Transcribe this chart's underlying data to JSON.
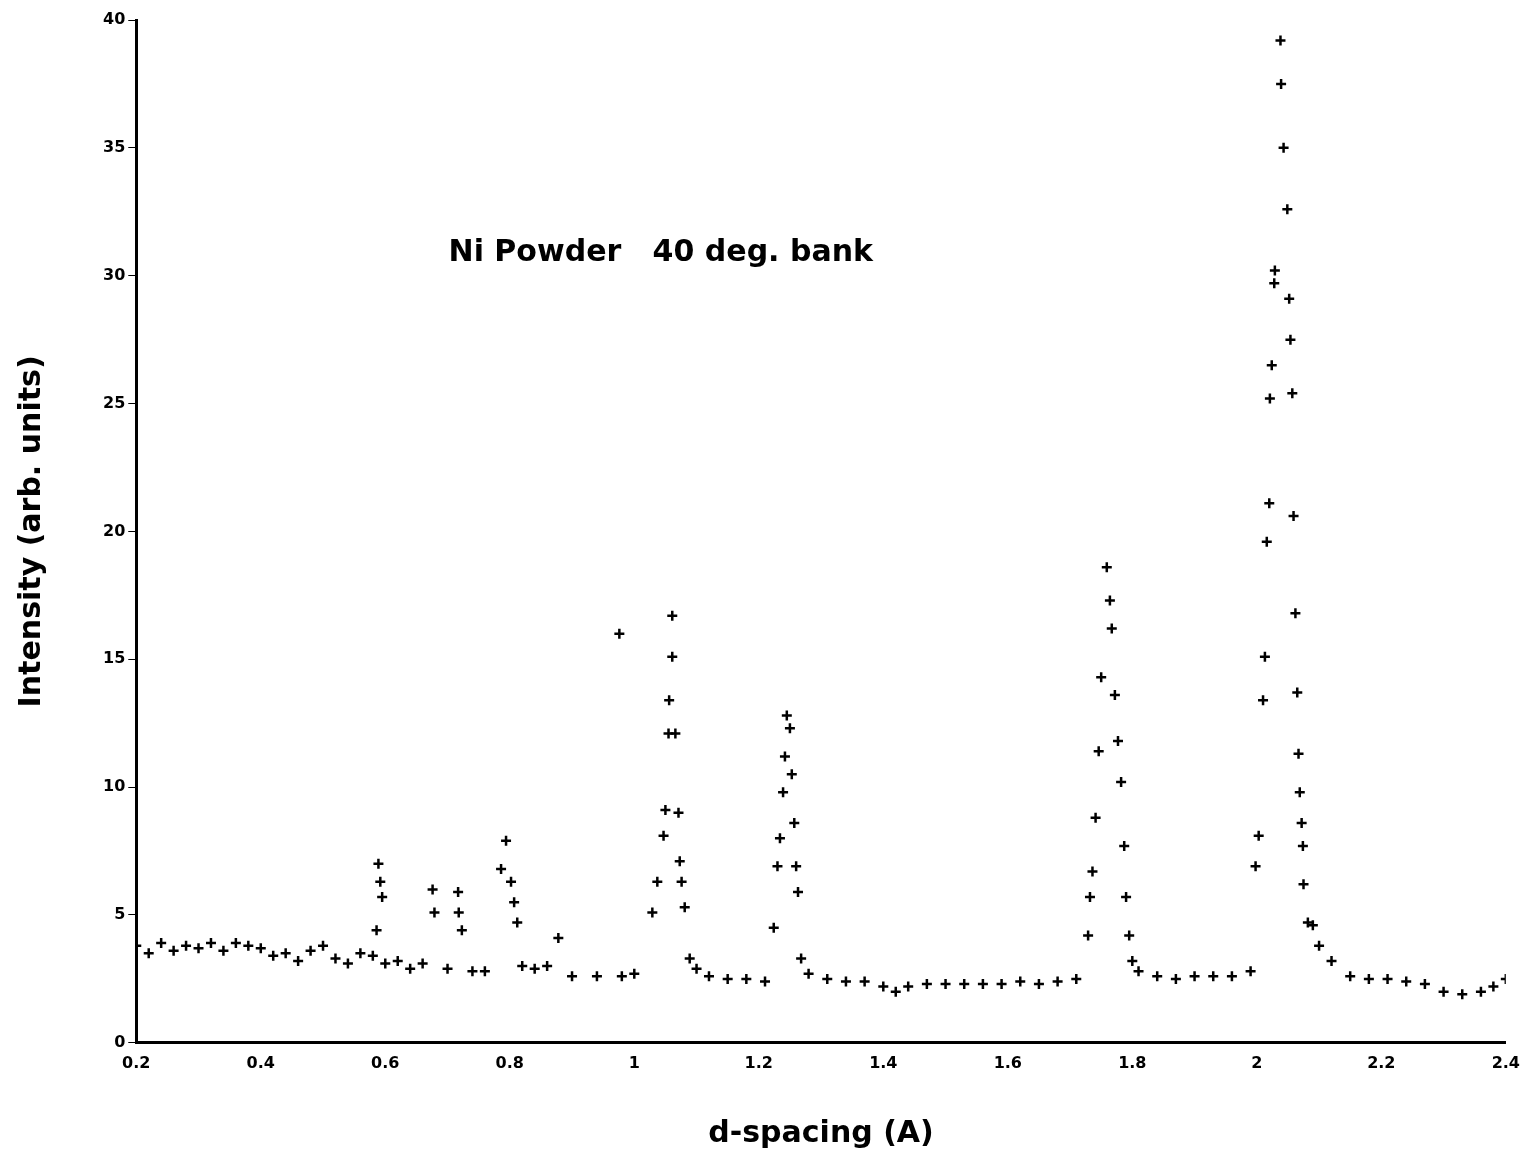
{
  "chart_data": {
    "type": "scatter",
    "title": "Ni Powder   40 deg. bank",
    "xlabel": "d-spacing (A)",
    "ylabel": "Intensity (arb. units)",
    "xlim": [
      0.2,
      2.4
    ],
    "xticks": [
      0.2,
      0.4,
      0.6,
      0.8,
      1,
      1.2,
      1.4,
      1.6,
      1.8,
      2,
      2.2,
      2.4
    ],
    "ylim": [
      0,
      40
    ],
    "yticks": [
      0,
      5,
      10,
      15,
      20,
      25,
      30,
      35,
      40
    ],
    "grid": false,
    "legend": false,
    "marker": "cross",
    "series": [
      {
        "color": "#000000",
        "x": [
          0.2,
          0.22,
          0.24,
          0.26,
          0.28,
          0.3,
          0.32,
          0.34,
          0.36,
          0.38,
          0.4,
          0.42,
          0.44,
          0.46,
          0.48,
          0.5,
          0.52,
          0.54,
          0.56,
          0.58,
          0.586,
          0.589,
          0.592,
          0.595,
          0.6,
          0.62,
          0.64,
          0.66,
          0.676,
          0.679,
          0.7,
          0.717,
          0.718,
          0.723,
          0.74,
          0.76,
          0.786,
          0.794,
          0.802,
          0.807,
          0.812,
          0.82,
          0.84,
          0.86,
          0.878,
          0.9,
          0.94,
          0.976,
          0.98,
          1.0,
          1.029,
          1.037,
          1.047,
          1.05,
          1.055,
          1.056,
          1.061,
          1.061,
          1.066,
          1.071,
          1.073,
          1.076,
          1.081,
          1.089,
          1.1,
          1.12,
          1.15,
          1.18,
          1.21,
          1.224,
          1.23,
          1.234,
          1.239,
          1.242,
          1.245,
          1.25,
          1.253,
          1.257,
          1.26,
          1.263,
          1.268,
          1.28,
          1.31,
          1.34,
          1.37,
          1.4,
          1.42,
          1.44,
          1.47,
          1.5,
          1.53,
          1.56,
          1.59,
          1.62,
          1.65,
          1.68,
          1.71,
          1.729,
          1.732,
          1.736,
          1.741,
          1.746,
          1.75,
          1.759,
          1.764,
          1.767,
          1.772,
          1.777,
          1.782,
          1.787,
          1.79,
          1.795,
          1.8,
          1.81,
          1.84,
          1.87,
          1.9,
          1.93,
          1.96,
          1.99,
          1.998,
          2.003,
          2.01,
          2.013,
          2.016,
          2.02,
          2.021,
          2.024,
          2.028,
          2.029,
          2.038,
          2.039,
          2.043,
          2.049,
          2.052,
          2.054,
          2.057,
          2.059,
          2.062,
          2.065,
          2.067,
          2.069,
          2.072,
          2.074,
          2.075,
          2.082,
          2.09,
          2.1,
          2.12,
          2.15,
          2.18,
          2.21,
          2.24,
          2.27,
          2.3,
          2.33,
          2.36,
          2.38,
          2.4
        ],
        "values": [
          3.8,
          3.5,
          3.9,
          3.6,
          3.8,
          3.7,
          3.9,
          3.6,
          3.9,
          3.8,
          3.7,
          3.4,
          3.5,
          3.2,
          3.6,
          3.8,
          3.3,
          3.1,
          3.5,
          3.4,
          4.4,
          7.0,
          6.3,
          5.7,
          3.1,
          3.2,
          2.9,
          3.1,
          6.0,
          5.1,
          2.9,
          5.9,
          5.1,
          4.4,
          2.8,
          2.8,
          6.8,
          7.9,
          6.3,
          5.5,
          4.7,
          3.0,
          2.9,
          3.0,
          4.1,
          2.6,
          2.6,
          16.0,
          2.6,
          2.7,
          5.1,
          6.3,
          8.1,
          9.1,
          12.1,
          13.4,
          16.7,
          15.1,
          12.1,
          9.0,
          7.1,
          6.3,
          5.3,
          3.3,
          2.9,
          2.6,
          2.5,
          2.5,
          2.4,
          4.5,
          6.9,
          8.0,
          9.8,
          11.2,
          12.8,
          12.3,
          10.5,
          8.6,
          6.9,
          5.9,
          3.3,
          2.7,
          2.5,
          2.4,
          2.4,
          2.2,
          2.0,
          2.2,
          2.3,
          2.3,
          2.3,
          2.3,
          2.3,
          2.4,
          2.3,
          2.4,
          2.5,
          4.2,
          5.7,
          6.7,
          8.8,
          11.4,
          14.3,
          18.6,
          17.3,
          16.2,
          13.6,
          11.8,
          10.2,
          7.7,
          5.7,
          4.2,
          3.2,
          2.8,
          2.6,
          2.5,
          2.6,
          2.6,
          2.6,
          2.8,
          6.9,
          8.1,
          13.4,
          15.1,
          19.6,
          21.1,
          25.2,
          26.5,
          29.7,
          30.2,
          39.2,
          37.5,
          35.0,
          32.6,
          29.1,
          27.5,
          25.4,
          20.6,
          16.8,
          13.7,
          11.3,
          9.8,
          8.6,
          7.7,
          6.2,
          4.7,
          4.6,
          3.8,
          3.2,
          2.6,
          2.5,
          2.5,
          2.4,
          2.3,
          2.0,
          1.9,
          2.0,
          2.2,
          2.5
        ]
      }
    ]
  }
}
